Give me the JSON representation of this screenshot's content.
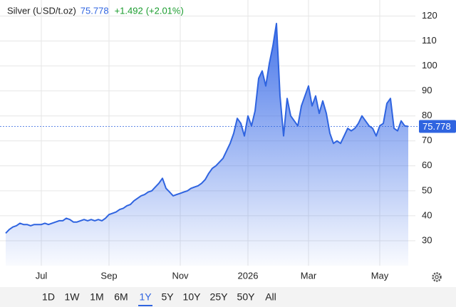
{
  "chart_data": {
    "type": "area",
    "title": "Silver (USD/t.oz)",
    "price": 75.778,
    "change": "+1.492",
    "change_percent": "(+2.01%)",
    "color": "#2f64e0",
    "values": [
      33,
      34.5,
      35.5,
      36,
      37,
      36.5,
      36.5,
      36,
      36.5,
      36.5,
      36.5,
      37,
      36.5,
      37,
      37.5,
      38,
      38,
      39,
      38.5,
      37.5,
      37.5,
      38,
      38.5,
      38,
      38.5,
      38,
      38.5,
      38,
      39,
      40.5,
      41,
      41.5,
      42.5,
      43,
      44,
      44.5,
      46,
      47,
      48,
      48.5,
      49.5,
      50,
      51.5,
      53,
      55,
      51,
      49.5,
      48,
      48.5,
      49,
      49.5,
      50,
      51,
      51.5,
      52,
      53,
      54.5,
      57,
      59,
      60,
      61.5,
      63,
      66,
      69,
      73,
      79,
      77,
      72,
      80,
      76,
      82,
      95,
      98,
      92,
      101,
      108,
      117,
      88,
      72,
      87,
      80,
      78,
      76,
      84,
      88,
      92,
      84,
      88,
      81,
      86,
      81,
      73,
      69,
      70,
      69,
      72,
      75,
      74,
      75,
      77,
      80,
      78,
      76,
      75,
      72,
      76,
      77,
      85,
      87,
      75,
      74,
      78,
      76,
      75.778
    ],
    "xlim": [
      0,
      113
    ],
    "xticks": [
      {
        "value": 10,
        "label": "Jul"
      },
      {
        "value": 29,
        "label": "Sep"
      },
      {
        "value": 49,
        "label": "Nov"
      },
      {
        "value": 68,
        "label": "2026"
      },
      {
        "value": 85,
        "label": "Mar"
      },
      {
        "value": 105,
        "label": "May"
      }
    ],
    "ylim": [
      20,
      125
    ],
    "yticks": [
      30,
      40,
      50,
      60,
      70,
      80,
      90,
      100,
      110,
      120
    ],
    "grid": true,
    "ranges": [
      "1D",
      "1W",
      "1M",
      "6M",
      "1Y",
      "5Y",
      "10Y",
      "25Y",
      "50Y",
      "All"
    ],
    "active_range_index": 4
  }
}
